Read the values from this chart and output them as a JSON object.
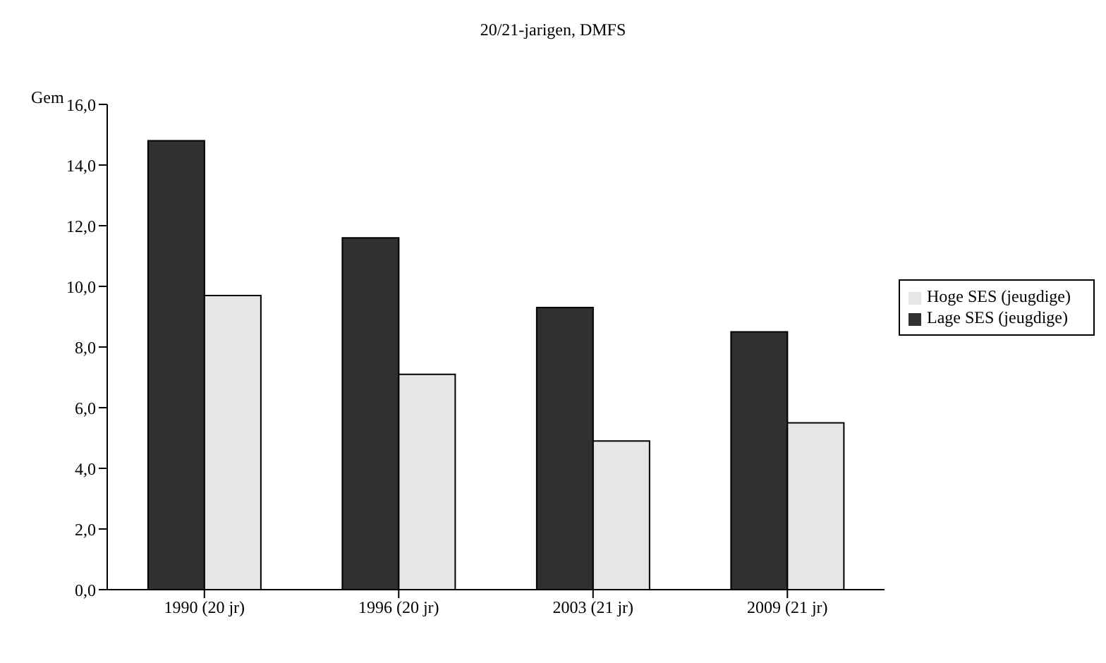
{
  "chart_data": {
    "type": "bar",
    "title": "20/21-jarigen, DMFS",
    "ylabel": "Gem",
    "categories": [
      "1990 (20 jr)",
      "1996 (20 jr)",
      "2003 (21 jr)",
      "2009 (21 jr)"
    ],
    "series": [
      {
        "name": "Lage SES (jeugdige)",
        "color": "#303030",
        "values": [
          14.8,
          11.6,
          9.3,
          8.5
        ]
      },
      {
        "name": "Hoge SES (jeugdige)",
        "color": "#e6e6e6",
        "values": [
          9.7,
          7.1,
          4.9,
          5.5
        ]
      }
    ],
    "ylim": [
      0,
      16
    ],
    "yticks": [
      {
        "value": 0,
        "label": "0,0"
      },
      {
        "value": 2,
        "label": "2,0"
      },
      {
        "value": 4,
        "label": "4,0"
      },
      {
        "value": 6,
        "label": "6,0"
      },
      {
        "value": 8,
        "label": "8,0"
      },
      {
        "value": 10,
        "label": "10,0"
      },
      {
        "value": 12,
        "label": "12,0"
      },
      {
        "value": 14,
        "label": "14,0"
      },
      {
        "value": 16,
        "label": "16,0"
      }
    ],
    "grid": false,
    "legend": "right"
  }
}
